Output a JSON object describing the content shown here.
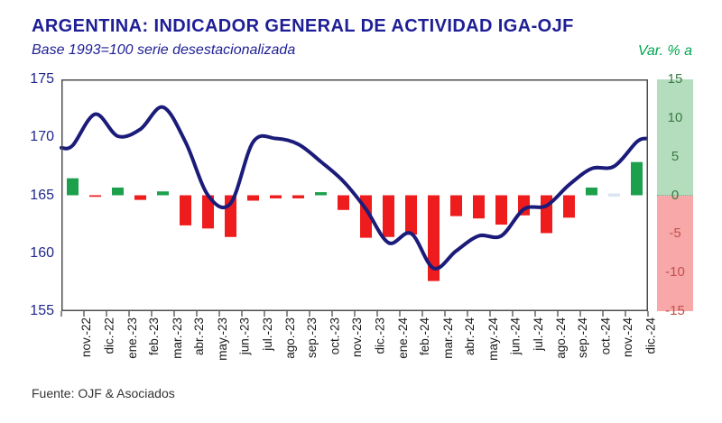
{
  "header": {
    "title": "ARGENTINA: INDICADOR GENERAL DE ACTIVIDAD IGA-OJF",
    "subtitle": "Base 1993=100 serie desestacionalizada",
    "right_axis_label": "Var. % a"
  },
  "footer": {
    "source": "Fuente: OJF & Asociados"
  },
  "colors": {
    "title_text": "#1e1e96",
    "line": "#1b1b7a",
    "bar_positive": "#1ca04c",
    "bar_negative": "#ee1c1c",
    "bar_near_zero": "#d9e6f2",
    "left_axis_text": "#20288c",
    "strip_positive_bg": "#b3ddbc",
    "strip_negative_bg": "#f8a8a8",
    "strip_positive_text": "#3c7a46",
    "strip_negative_text": "#c0504d",
    "x_axis_text": "#1a1a1a",
    "frame": "#4d4d4d",
    "var_label_text": "#00a551",
    "source_text": "#333333"
  },
  "chart_data": {
    "type": "combo",
    "title": "ARGENTINA: INDICADOR GENERAL DE ACTIVIDAD IGA-OJF",
    "subtitle": "Base 1993=100 serie desestacionalizada",
    "grid": false,
    "legend": "none",
    "categories": [
      "nov.-22",
      "dic.-22",
      "ene.-23",
      "feb.-23",
      "mar.-23",
      "abr.-23",
      "may.-23",
      "jun.-23",
      "jul.-23",
      "ago.-23",
      "sep.-23",
      "oct.-23",
      "nov.-23",
      "dic.-23",
      "ene.-24",
      "feb.-24",
      "mar.-24",
      "abr.-24",
      "may.-24",
      "jun.-24",
      "jul.-24",
      "ago.-24",
      "sep.-24",
      "oct.-24",
      "nov.-24",
      "dic.-24"
    ],
    "series": [
      {
        "name": "IGA serie desestacionalizada (base 1993=100)",
        "type": "line",
        "axis": "left",
        "values": [
          169.3,
          172.0,
          170.1,
          170.7,
          172.6,
          169.6,
          165.0,
          164.3,
          169.6,
          169.9,
          169.4,
          167.9,
          166.2,
          163.8,
          160.9,
          161.7,
          158.7,
          160.2,
          161.5,
          161.5,
          163.8,
          164.1,
          165.9,
          167.3,
          167.5,
          169.6
        ]
      },
      {
        "name": "Var. % a",
        "type": "bar",
        "axis": "right",
        "values": [
          2.2,
          -0.2,
          1.0,
          -0.6,
          0.5,
          -3.9,
          -4.3,
          -5.4,
          -0.7,
          -0.4,
          -0.4,
          0.4,
          -1.9,
          -5.5,
          -5.4,
          -5.1,
          -11.1,
          -2.7,
          -3.0,
          -3.8,
          -2.6,
          -4.9,
          -2.9,
          1.0,
          0.0,
          4.3
        ]
      }
    ],
    "left_axis": {
      "ticks": [
        175,
        170,
        165,
        160,
        155
      ],
      "range": [
        155,
        175
      ]
    },
    "right_axis": {
      "ticks": [
        15,
        10,
        5,
        0,
        -5,
        -10,
        -15
      ],
      "range": [
        -15,
        15
      ]
    }
  }
}
